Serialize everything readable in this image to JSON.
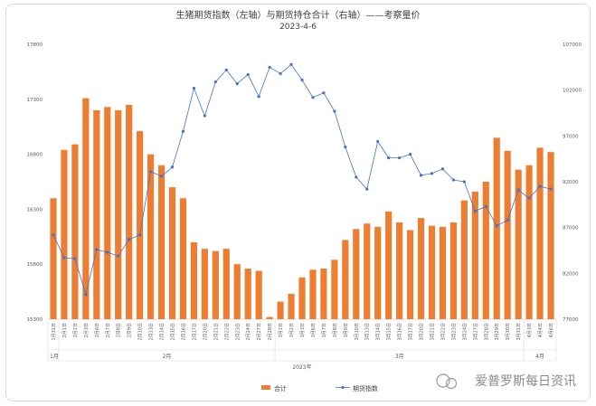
{
  "watermark": "爱普罗斯每日资讯",
  "chart_data": {
    "type": "bar+line",
    "title": "生猪期货指数（左轴）与期货持仓合计（右轴）——考察量价",
    "subtitle": "2023-4-6",
    "left_axis": {
      "ylim": [
        15300,
        17800
      ],
      "ticks": [
        "15300",
        "15800",
        "16300",
        "16800",
        "17300",
        "17800"
      ]
    },
    "right_axis": {
      "ylim": [
        77000,
        107000
      ],
      "ticks": [
        "77000",
        "82000",
        "87000",
        "92000",
        "97000",
        "102000",
        "107000"
      ]
    },
    "categories": [
      "1月31日",
      "2月1日",
      "2月2日",
      "2月3日",
      "2月6日",
      "2月7日",
      "2月8日",
      "2月9日",
      "2月10日",
      "2月13日",
      "2月14日",
      "2月15日",
      "2月16日",
      "2月17日",
      "2月20日",
      "2月21日",
      "2月22日",
      "2月23日",
      "2月24日",
      "2月27日",
      "2月28日",
      "3月1日",
      "3月2日",
      "3月3日",
      "3月6日",
      "3月7日",
      "3月8日",
      "3月9日",
      "3月10日",
      "3月13日",
      "3月14日",
      "3月15日",
      "3月16日",
      "3月17日",
      "3月20日",
      "3月21日",
      "3月22日",
      "3月23日",
      "3月24日",
      "3月27日",
      "3月28日",
      "3月29日",
      "3月30日",
      "3月31日",
      "4月3日",
      "4月4日",
      "4月6日"
    ],
    "groups": [
      {
        "label": "1月",
        "start": 0,
        "end": 0
      },
      {
        "label": "2月",
        "start": 1,
        "end": 20
      },
      {
        "label": "3月",
        "start": 21,
        "end": 43
      },
      {
        "label": "4月",
        "start": 44,
        "end": 46
      }
    ],
    "year_label": "2023年",
    "series": [
      {
        "name": "合计",
        "type": "bar",
        "axis": "left",
        "color": "#ED7D31",
        "values": [
          16400,
          16840,
          16890,
          17310,
          17200,
          17230,
          17200,
          17250,
          17010,
          16800,
          16700,
          16500,
          16400,
          16000,
          15940,
          15920,
          15940,
          15800,
          15760,
          15740,
          15320,
          15460,
          15530,
          15680,
          15750,
          15760,
          15840,
          16020,
          16120,
          16170,
          16140,
          16280,
          16180,
          16110,
          16220,
          16150,
          16140,
          16180,
          16380,
          16460,
          16550,
          16950,
          16830,
          16660,
          16700,
          16860,
          16820
        ]
      },
      {
        "name": "期货指数",
        "type": "line",
        "axis": "right",
        "color": "#4472C4",
        "values": [
          86200,
          83700,
          83600,
          79700,
          84600,
          84300,
          83900,
          85700,
          86200,
          93100,
          92600,
          93600,
          97500,
          102200,
          99200,
          102900,
          104200,
          102700,
          103700,
          101300,
          104500,
          103800,
          104800,
          103100,
          101200,
          101700,
          99700,
          95800,
          92500,
          91200,
          96400,
          94600,
          94600,
          95000,
          92700,
          92900,
          93400,
          92200,
          92000,
          88800,
          89300,
          87200,
          87800,
          91100,
          90200,
          91500,
          91200
        ]
      }
    ],
    "legend_position": "bottom",
    "grid": false
  }
}
